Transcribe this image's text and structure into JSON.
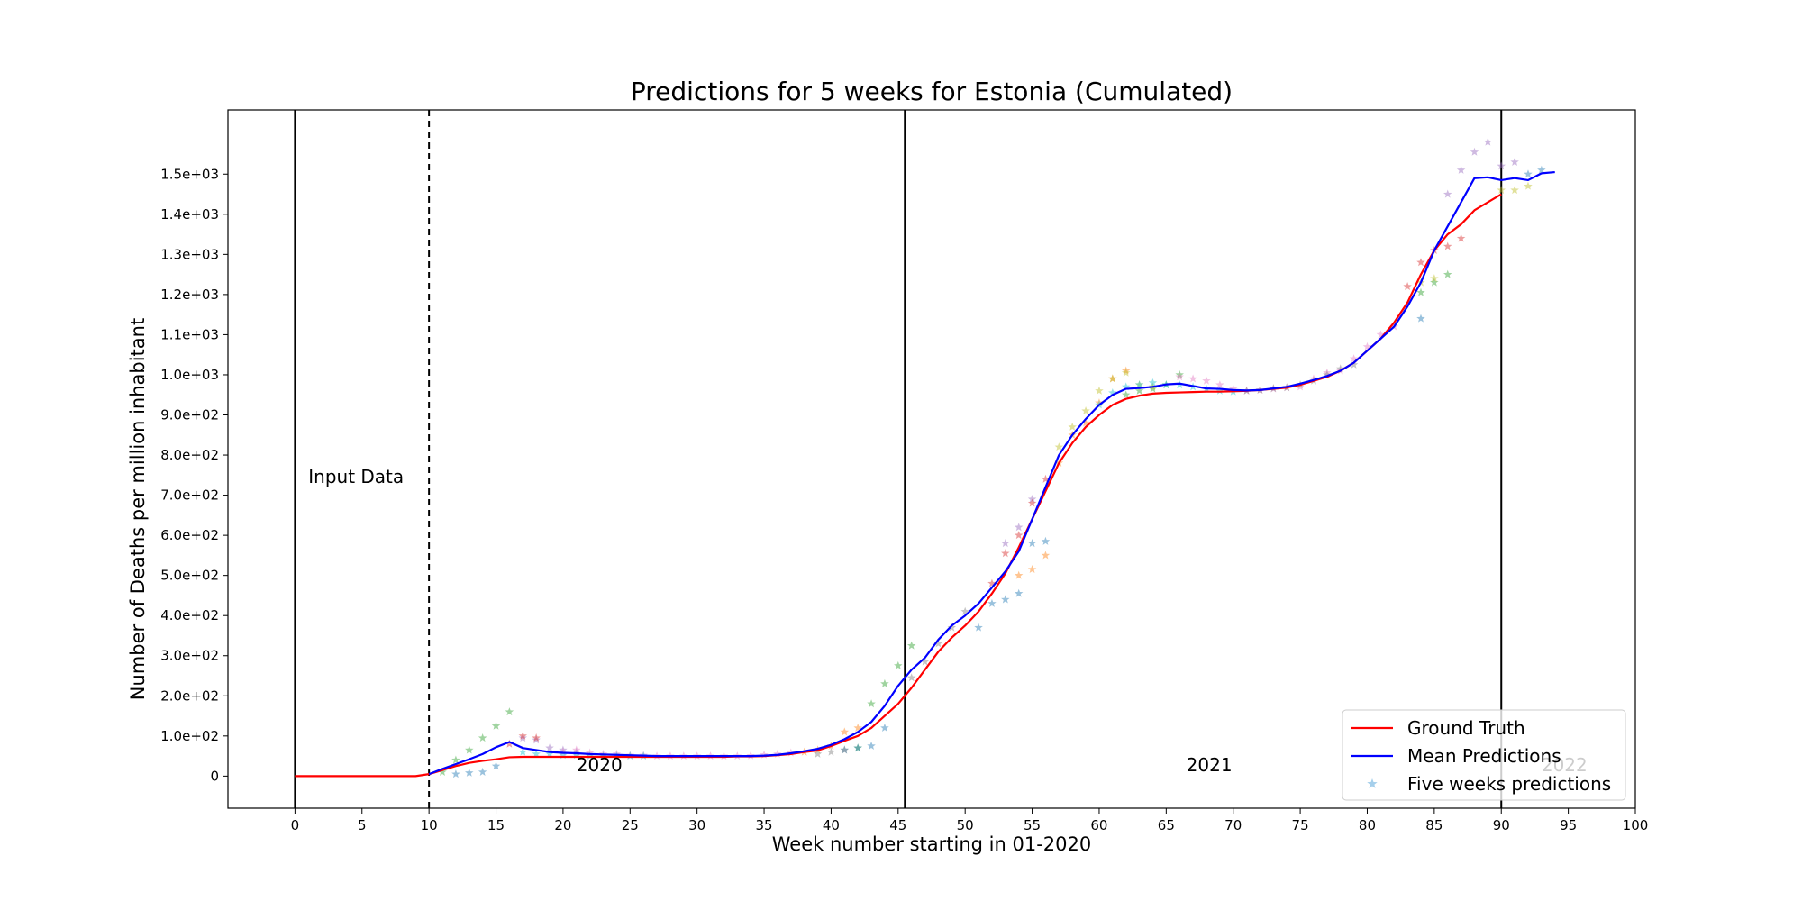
{
  "chart_data": {
    "type": "line",
    "title": "Predictions for 5 weeks for Estonia (Cumulated)",
    "xlabel": "Week number starting in 01-2020",
    "ylabel": "Number of Deaths per million inhabitant",
    "xlim": [
      -5,
      100
    ],
    "ylim": [
      -80,
      1660
    ],
    "x_ticks": [
      0,
      5,
      10,
      15,
      20,
      25,
      30,
      35,
      40,
      45,
      50,
      55,
      60,
      65,
      70,
      75,
      80,
      85,
      90,
      95,
      100
    ],
    "x_tick_labels": [
      "0",
      "5",
      "10",
      "15",
      "20",
      "25",
      "30",
      "35",
      "40",
      "45",
      "50",
      "55",
      "60",
      "65",
      "70",
      "75",
      "80",
      "85",
      "90",
      "95",
      "100"
    ],
    "y_ticks": [
      0,
      100,
      200,
      300,
      400,
      500,
      600,
      700,
      800,
      900,
      1000,
      1100,
      1200,
      1300,
      1400,
      1500
    ],
    "y_tick_labels": [
      "0",
      "1.0e+02",
      "2.0e+02",
      "3.0e+02",
      "4.0e+02",
      "5.0e+02",
      "6.0e+02",
      "7.0e+02",
      "8.0e+02",
      "9.0e+02",
      "1.0e+03",
      "1.1e+03",
      "1.2e+03",
      "1.3e+03",
      "1.4e+03",
      "1.5e+03"
    ],
    "grid": false,
    "legend_position": "bottom-right",
    "vertical_lines": [
      {
        "x": 0,
        "style": "solid"
      },
      {
        "x": 10,
        "style": "dashed"
      },
      {
        "x": 45.5,
        "style": "solid"
      },
      {
        "x": 90,
        "style": "solid"
      }
    ],
    "annotations": [
      {
        "text": "Input Data",
        "x": 1,
        "y": 730,
        "color": "#000000"
      },
      {
        "text": "2020",
        "x": 21,
        "y": 12,
        "color": "#000000"
      },
      {
        "text": "2021",
        "x": 66.5,
        "y": 12,
        "color": "#000000"
      },
      {
        "text": "2022",
        "x": 93,
        "y": 12,
        "color": "#c8c8c8"
      }
    ],
    "series": [
      {
        "name": "Ground Truth",
        "color": "#ff0000",
        "style": "line",
        "x": [
          0,
          1,
          2,
          3,
          4,
          5,
          6,
          7,
          8,
          9,
          10,
          11,
          12,
          13,
          14,
          15,
          16,
          17,
          18,
          19,
          20,
          21,
          22,
          23,
          24,
          25,
          26,
          27,
          28,
          29,
          30,
          31,
          32,
          33,
          34,
          35,
          36,
          37,
          38,
          39,
          40,
          41,
          42,
          43,
          44,
          45,
          46,
          47,
          48,
          49,
          50,
          51,
          52,
          53,
          54,
          55,
          56,
          57,
          58,
          59,
          60,
          61,
          62,
          63,
          64,
          65,
          66,
          67,
          68,
          69,
          70,
          71,
          72,
          73,
          74,
          75,
          76,
          77,
          78,
          79,
          80,
          81,
          82,
          83,
          84,
          85,
          86,
          87,
          88,
          89,
          90
        ],
        "y": [
          0,
          0,
          0,
          0,
          0,
          0,
          0,
          0,
          0,
          0,
          5,
          15,
          25,
          33,
          38,
          42,
          47,
          48,
          48,
          48,
          48,
          48,
          48,
          48,
          48,
          48,
          48,
          48,
          48,
          48,
          48,
          48,
          48,
          49,
          49,
          50,
          52,
          55,
          60,
          64,
          75,
          88,
          100,
          120,
          150,
          180,
          220,
          265,
          310,
          345,
          375,
          410,
          455,
          505,
          570,
          640,
          710,
          780,
          830,
          870,
          900,
          925,
          940,
          948,
          953,
          955,
          956,
          957,
          958,
          958,
          959,
          960,
          962,
          965,
          968,
          975,
          985,
          995,
          1010,
          1030,
          1060,
          1090,
          1130,
          1180,
          1250,
          1310,
          1350,
          1375,
          1410,
          1430,
          1450
        ]
      },
      {
        "name": "Mean Predictions",
        "color": "#0000ff",
        "style": "line",
        "x": [
          10,
          11,
          12,
          13,
          14,
          15,
          16,
          17,
          18,
          19,
          20,
          21,
          22,
          23,
          24,
          25,
          26,
          27,
          28,
          29,
          30,
          31,
          32,
          33,
          34,
          35,
          36,
          37,
          38,
          39,
          40,
          41,
          42,
          43,
          44,
          45,
          46,
          47,
          48,
          49,
          50,
          51,
          52,
          53,
          54,
          55,
          56,
          57,
          58,
          59,
          60,
          61,
          62,
          63,
          64,
          65,
          66,
          67,
          68,
          69,
          70,
          71,
          72,
          73,
          74,
          75,
          76,
          77,
          78,
          79,
          80,
          81,
          82,
          83,
          84,
          85,
          86,
          87,
          88,
          89,
          90,
          91,
          92,
          93,
          94
        ],
        "y": [
          5,
          18,
          30,
          42,
          55,
          72,
          85,
          70,
          65,
          60,
          58,
          57,
          55,
          54,
          53,
          52,
          51,
          50,
          50,
          50,
          50,
          50,
          50,
          50,
          50,
          51,
          53,
          57,
          62,
          68,
          78,
          92,
          110,
          135,
          175,
          225,
          265,
          295,
          340,
          375,
          400,
          430,
          470,
          510,
          560,
          640,
          720,
          800,
          850,
          890,
          925,
          950,
          965,
          967,
          970,
          976,
          978,
          972,
          966,
          965,
          962,
          961,
          962,
          966,
          970,
          978,
          987,
          997,
          1010,
          1030,
          1060,
          1090,
          1120,
          1170,
          1230,
          1310,
          1370,
          1430,
          1490,
          1492,
          1485,
          1490,
          1485,
          1502,
          1505
        ]
      },
      {
        "name": "Five weeks predictions",
        "style": "scatter",
        "marker": "star",
        "legend_color": "#8ec3e6",
        "groups": [
          {
            "color": "#2ca02c",
            "x": [
              11,
              12,
              13,
              14,
              15,
              16,
              42,
              43,
              44,
              45,
              46,
              62,
              63,
              64,
              65,
              66,
              84,
              85,
              86
            ],
            "y": [
              10,
              40,
              65,
              95,
              125,
              160,
              70,
              180,
              230,
              275,
              325,
              950,
              960,
              965,
              975,
              1000,
              1205,
              1230,
              1250
            ]
          },
          {
            "color": "#1f77b4",
            "x": [
              12,
              13,
              14,
              15,
              41,
              42,
              43,
              44,
              51,
              52,
              53,
              54,
              55,
              56,
              84,
              92,
              93
            ],
            "y": [
              5,
              8,
              10,
              25,
              65,
              70,
              75,
              120,
              370,
              430,
              440,
              455,
              580,
              585,
              1140,
              1500,
              1510
            ]
          },
          {
            "color": "#9467bd",
            "x": [
              17,
              18,
              19,
              20,
              21,
              53,
              54,
              55,
              86,
              87,
              88,
              89,
              90,
              91
            ],
            "y": [
              95,
              90,
              70,
              65,
              60,
              580,
              620,
              690,
              1450,
              1510,
              1555,
              1580,
              1520,
              1530
            ]
          },
          {
            "color": "#ff7f0e",
            "x": [
              38,
              39,
              40,
              41,
              42,
              54,
              55,
              56,
              57,
              58,
              59,
              60,
              61,
              62
            ],
            "y": [
              60,
              65,
              75,
              110,
              120,
              500,
              515,
              550,
              780,
              850,
              880,
              930,
              990,
              1010
            ]
          },
          {
            "color": "#d62728",
            "x": [
              16,
              17,
              18,
              52,
              53,
              54,
              55,
              56,
              83,
              84,
              85,
              86,
              87
            ],
            "y": [
              80,
              100,
              95,
              480,
              555,
              600,
              680,
              740,
              1220,
              1280,
              1310,
              1320,
              1340
            ]
          },
          {
            "color": "#bcbd22",
            "x": [
              57,
              58,
              59,
              60,
              61,
              62,
              63,
              64,
              84,
              85,
              90,
              91,
              92
            ],
            "y": [
              820,
              870,
              910,
              960,
              990,
              1005,
              975,
              970,
              1230,
              1240,
              1460,
              1460,
              1470
            ]
          },
          {
            "color": "#e377c2",
            "x": [
              20,
              21,
              22,
              23,
              24,
              25,
              26,
              27,
              28,
              29,
              30,
              31,
              32,
              33,
              34,
              35,
              36,
              37,
              66,
              67,
              68,
              69,
              70,
              71,
              72,
              73,
              74,
              75,
              76,
              77,
              78,
              79,
              80,
              81,
              82
            ],
            "y": [
              60,
              65,
              58,
              55,
              55,
              52,
              52,
              50,
              50,
              50,
              50,
              50,
              50,
              50,
              51,
              53,
              55,
              58,
              995,
              990,
              985,
              975,
              965,
              960,
              962,
              965,
              968,
              970,
              990,
              1005,
              1010,
              1040,
              1070,
              1100,
              1120
            ]
          },
          {
            "color": "#17becf",
            "x": [
              17,
              18,
              19,
              20,
              21,
              22,
              23,
              24,
              25,
              26,
              60,
              61,
              62,
              63,
              64,
              65,
              66,
              67,
              68,
              69,
              70
            ],
            "y": [
              60,
              55,
              55,
              52,
              52,
              50,
              50,
              50,
              50,
              50,
              925,
              955,
              970,
              975,
              980,
              975,
              975,
              970,
              965,
              960,
              958
            ]
          },
          {
            "color": "#7f7f7f",
            "x": [
              39,
              40,
              41,
              46,
              47,
              48,
              49,
              50,
              71,
              72,
              73,
              74,
              75,
              76,
              77,
              78,
              79
            ],
            "y": [
              55,
              60,
              65,
              245,
              285,
              330,
              370,
              410,
              960,
              962,
              966,
              968,
              975,
              985,
              1000,
              1015,
              1025
            ]
          }
        ]
      }
    ]
  },
  "legend": {
    "items": [
      {
        "label": "Ground Truth",
        "color": "#ff0000",
        "kind": "line"
      },
      {
        "label": "Mean Predictions",
        "color": "#0000ff",
        "kind": "line"
      },
      {
        "label": "Five weeks predictions",
        "color": "#8ec3e6",
        "kind": "star"
      }
    ]
  }
}
